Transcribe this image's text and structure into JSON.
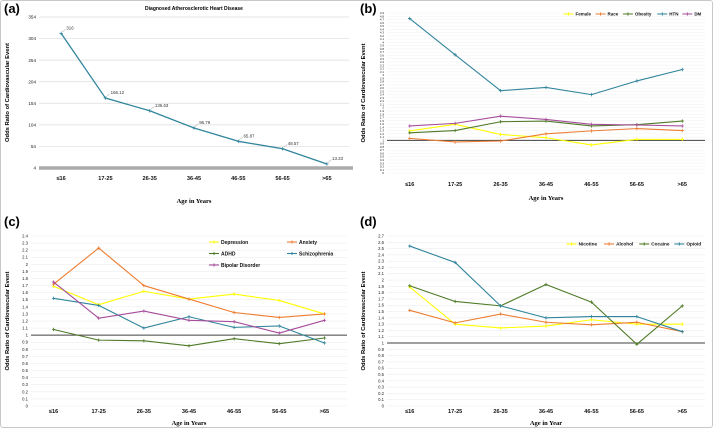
{
  "figure": {
    "description": "Four-panel line chart figure of odds ratios of cardiovascular events by age group"
  },
  "chart_data": [
    {
      "type": "line",
      "panel_letter": "(a)",
      "title": "Diagnosed Atherosclerotic Heart Disease",
      "ylabel": "Odds Ratio of Cardiovascular Event",
      "xlabel": "Age in Years",
      "categories": [
        "≤16",
        "17-25",
        "26-35",
        "36-45",
        "46-55",
        "56-65",
        ">65"
      ],
      "y_ticks": [
        354,
        304,
        254,
        204,
        154,
        104,
        54,
        4
      ],
      "ylim": [
        4,
        354
      ],
      "baseline": {
        "value": 4,
        "style": "thick-gray"
      },
      "grid": true,
      "legend": false,
      "series": [
        {
          "name": "Diagnosed Atherosclerotic Heart Disease",
          "color": "#31859C",
          "values": [
            316,
            166.12,
            136.63,
            96.79,
            65.87,
            48.57,
            13.33
          ],
          "point_labels": [
            "316",
            "166.12",
            "136.63",
            "96.79",
            "65.87",
            "48.57",
            "13.33"
          ]
        }
      ]
    },
    {
      "type": "line",
      "panel_letter": "(b)",
      "title": "",
      "ylabel": "Odds Ratio of Cardiovascular Event",
      "xlabel": "Age in Years",
      "categories": [
        "≤16",
        "17-25",
        "26-35",
        "36-45",
        "46-55",
        "56-65",
        ">65"
      ],
      "ylim": [
        0,
        4.9
      ],
      "y_tick_step": 0.1,
      "baseline": {
        "value": 1,
        "style": "dark"
      },
      "grid": true,
      "legend": true,
      "series": [
        {
          "name": "Female",
          "color": "#FFFF00",
          "values": [
            1.29,
            1.49,
            1.18,
            1.08,
            0.86,
            1.03,
            1.03
          ]
        },
        {
          "name": "Race",
          "color": "#ED7D31",
          "values": [
            1.06,
            0.95,
            0.98,
            1.2,
            1.29,
            1.36,
            1.3
          ]
        },
        {
          "name": "Obesity",
          "color": "#4E7A27",
          "values": [
            1.23,
            1.3,
            1.57,
            1.59,
            1.44,
            1.48,
            1.59
          ]
        },
        {
          "name": "HTN",
          "color": "#31859C",
          "values": [
            4.73,
            3.62,
            2.52,
            2.62,
            2.4,
            2.82,
            3.17
          ]
        },
        {
          "name": "DM",
          "color": "#A64D9C",
          "values": [
            1.44,
            1.52,
            1.74,
            1.64,
            1.49,
            1.47,
            1.44
          ]
        }
      ]
    },
    {
      "type": "line",
      "panel_letter": "(c)",
      "title": "",
      "ylabel": "Odds Ratio of Cardiovascular Event",
      "xlabel": "Age in Years",
      "categories": [
        "≤16",
        "17-25",
        "26-35",
        "36-45",
        "46-55",
        "56-65",
        ">65"
      ],
      "ylim": [
        0,
        2.4
      ],
      "y_tick_step": 0.1,
      "baseline": {
        "value": 1,
        "style": "dark"
      },
      "grid": true,
      "legend": true,
      "series": [
        {
          "name": "Depression",
          "color": "#FFFF00",
          "values": [
            1.69,
            1.43,
            1.62,
            1.51,
            1.58,
            1.49,
            1.3
          ]
        },
        {
          "name": "Anxiety",
          "color": "#ED7D31",
          "values": [
            1.72,
            2.23,
            1.7,
            1.51,
            1.32,
            1.25,
            1.3
          ]
        },
        {
          "name": "ADHD",
          "color": "#4E7A27",
          "values": [
            1.08,
            0.93,
            0.92,
            0.85,
            0.95,
            0.88,
            0.96
          ]
        },
        {
          "name": "Schizophrenia",
          "color": "#31859C",
          "values": [
            1.52,
            1.42,
            1.1,
            1.26,
            1.11,
            1.13,
            0.89
          ]
        },
        {
          "name": "Bipolar Disorder",
          "color": "#A64D9C",
          "values": [
            1.75,
            1.24,
            1.34,
            1.21,
            1.19,
            1.03,
            1.21
          ]
        }
      ]
    },
    {
      "type": "line",
      "panel_letter": "(d)",
      "title": "",
      "ylabel": "Odds Ratio of Cardiovascular Event",
      "xlabel": "Age in Year",
      "categories": [
        "≤16",
        "17-25",
        "26-35",
        "36-45",
        "46-55",
        "56-65",
        ">65"
      ],
      "ylim": [
        0,
        2.7
      ],
      "y_tick_step": 0.1,
      "baseline": {
        "value": 1,
        "style": "dark"
      },
      "grid": true,
      "legend": true,
      "series": [
        {
          "name": "Nicotine",
          "color": "#FFFF00",
          "values": [
            1.89,
            1.3,
            1.24,
            1.27,
            1.37,
            1.3,
            1.3
          ]
        },
        {
          "name": "Alcohol",
          "color": "#ED7D31",
          "values": [
            1.52,
            1.32,
            1.46,
            1.33,
            1.29,
            1.33,
            1.18
          ]
        },
        {
          "name": "Cocaine",
          "color": "#4E7A27",
          "values": [
            1.91,
            1.66,
            1.59,
            1.93,
            1.65,
            0.98,
            1.59
          ]
        },
        {
          "name": "Opioid",
          "color": "#31859C",
          "values": [
            2.54,
            2.28,
            1.59,
            1.4,
            1.42,
            1.42,
            1.18
          ]
        }
      ]
    }
  ]
}
